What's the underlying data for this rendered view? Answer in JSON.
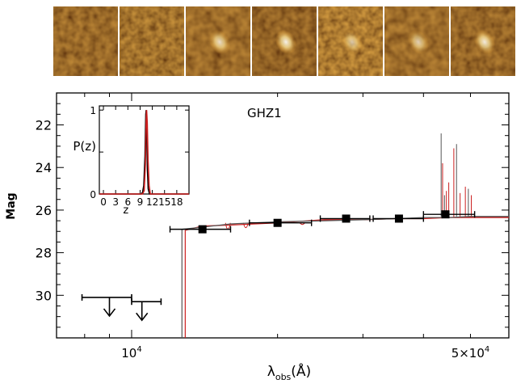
{
  "chart_data": {
    "type": "scatter",
    "object_label": "GHZ1",
    "xlabel": "λobs(Å)",
    "ylabel": "Mag",
    "x_scale": "log",
    "xlim": [
      7000,
      60000
    ],
    "ylim": [
      32,
      20.5
    ],
    "x_tick_labels": [
      {
        "value": 10000,
        "label": "10",
        "exp": "4"
      },
      {
        "value": 50000,
        "label": "5×10",
        "exp": "4"
      }
    ],
    "y_ticks": [
      22,
      24,
      26,
      28,
      30
    ],
    "photometry": [
      {
        "x": 14000,
        "xmin": 12000,
        "xmax": 16000,
        "y": 26.9
      },
      {
        "x": 20000,
        "xmin": 17500,
        "xmax": 23500,
        "y": 26.6
      },
      {
        "x": 27700,
        "xmin": 24500,
        "xmax": 31000,
        "y": 26.4
      },
      {
        "x": 35600,
        "xmin": 31500,
        "xmax": 40000,
        "y": 26.4
      },
      {
        "x": 44400,
        "xmin": 40000,
        "xmax": 51000,
        "y": 26.2
      }
    ],
    "upper_limits": [
      {
        "x": 9000,
        "xmin": 7900,
        "xmax": 10000,
        "y": 30.1
      },
      {
        "x": 10500,
        "xmin": 10000,
        "xmax": 11500,
        "y": 30.3
      }
    ],
    "sed_models": [
      {
        "color": "#cc1f1f",
        "break_x": 12900,
        "points": [
          [
            12900,
            26.95
          ],
          [
            14000,
            26.75
          ],
          [
            16000,
            26.7
          ],
          [
            20000,
            26.6
          ],
          [
            25000,
            26.45
          ],
          [
            30000,
            26.45
          ],
          [
            35000,
            26.4
          ],
          [
            40000,
            26.4
          ],
          [
            45000,
            26.35
          ],
          [
            50000,
            26.35
          ],
          [
            60000,
            26.35
          ]
        ],
        "lines": [
          [
            43800,
            23.8
          ],
          [
            44600,
            25.1
          ],
          [
            45100,
            24.7
          ],
          [
            46200,
            23.1
          ],
          [
            47600,
            25.2
          ],
          [
            48800,
            24.9
          ],
          [
            50200,
            25.3
          ]
        ]
      },
      {
        "color": "#555555",
        "break_x": 12700,
        "points": [
          [
            12700,
            26.9
          ],
          [
            14000,
            26.8
          ],
          [
            16000,
            26.65
          ],
          [
            20000,
            26.55
          ],
          [
            25000,
            26.5
          ],
          [
            30000,
            26.45
          ],
          [
            35000,
            26.4
          ],
          [
            40000,
            26.35
          ],
          [
            45000,
            26.35
          ],
          [
            50000,
            26.3
          ],
          [
            60000,
            26.3
          ]
        ],
        "lines": [
          [
            43500,
            22.4
          ],
          [
            44200,
            25.3
          ],
          [
            46800,
            22.9
          ],
          [
            49500,
            25.0
          ]
        ]
      }
    ],
    "inset": {
      "type": "line",
      "ylabel": "P(z)",
      "xlabel": "z",
      "xlim": [
        -1,
        21
      ],
      "ylim": [
        0,
        1.05
      ],
      "x_ticks": [
        0,
        3,
        6,
        9,
        12,
        15,
        18
      ],
      "y_ticks": [
        0,
        0.5,
        1
      ],
      "y_tick_labels": [
        "0",
        "",
        "1"
      ],
      "series": [
        {
          "color": "#000000",
          "points": [
            [
              -1,
              0
            ],
            [
              9.2,
              0
            ],
            [
              9.6,
              0.02
            ],
            [
              9.9,
              0.1
            ],
            [
              10.2,
              0.45
            ],
            [
              10.4,
              0.95
            ],
            [
              10.5,
              1.0
            ],
            [
              10.6,
              0.8
            ],
            [
              10.8,
              0.3
            ],
            [
              11.0,
              0.06
            ],
            [
              11.3,
              0
            ],
            [
              21,
              0
            ]
          ]
        },
        {
          "color": "#cc1f1f",
          "points": [
            [
              -1,
              0
            ],
            [
              9.6,
              0
            ],
            [
              10.0,
              0.04
            ],
            [
              10.3,
              0.35
            ],
            [
              10.5,
              0.9
            ],
            [
              10.6,
              1.0
            ],
            [
              10.75,
              0.85
            ],
            [
              10.95,
              0.4
            ],
            [
              11.2,
              0.1
            ],
            [
              11.5,
              0
            ],
            [
              21,
              0
            ]
          ]
        }
      ]
    }
  },
  "stamps": [
    {
      "blob": 0.0,
      "texture": 1,
      "dark": 0.5
    },
    {
      "blob": 0.0,
      "texture": 2,
      "dark": 0.35
    },
    {
      "blob": 0.75,
      "texture": 3,
      "dark": 0.45
    },
    {
      "blob": 0.9,
      "texture": 4,
      "dark": 0.6
    },
    {
      "blob": 0.6,
      "texture": 5,
      "dark": 0.2
    },
    {
      "blob": 0.65,
      "texture": 6,
      "dark": 0.45
    },
    {
      "blob": 0.85,
      "texture": 7,
      "dark": 0.55
    }
  ]
}
